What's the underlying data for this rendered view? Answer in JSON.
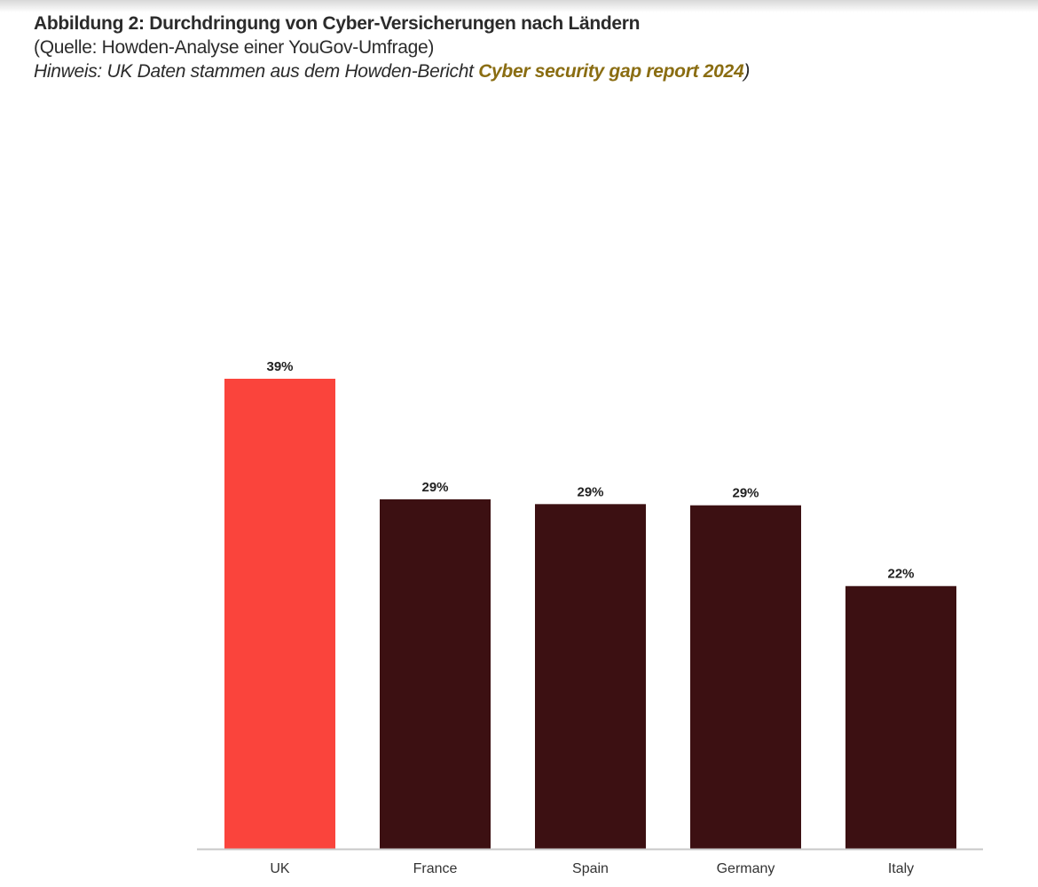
{
  "header": {
    "title": "Abbildung 2: Durchdringung von Cyber-Versicherungen nach Ländern",
    "source": "(Quelle: Howden-Analyse einer YouGov-Umfrage)",
    "note_prefix": "Hinweis: UK Daten stammen aus dem Howden-Bericht ",
    "note_link": "Cyber security gap report 2024",
    "note_suffix": ")"
  },
  "colors": {
    "highlight": "#fa443c",
    "bar": "#3c1012",
    "link": "#8a6d12",
    "axis": "#c8c8c8"
  },
  "chart_data": {
    "type": "bar",
    "categories": [
      "UK",
      "France",
      "Spain",
      "Germany",
      "Italy"
    ],
    "values": [
      39,
      29,
      28.6,
      28.5,
      21.8
    ],
    "labels": [
      "39%",
      "29%",
      "29%",
      "29%",
      "22%"
    ],
    "highlight": "UK",
    "unit": "%",
    "ylim": [
      0,
      39
    ],
    "grid": false,
    "legend": "none"
  }
}
